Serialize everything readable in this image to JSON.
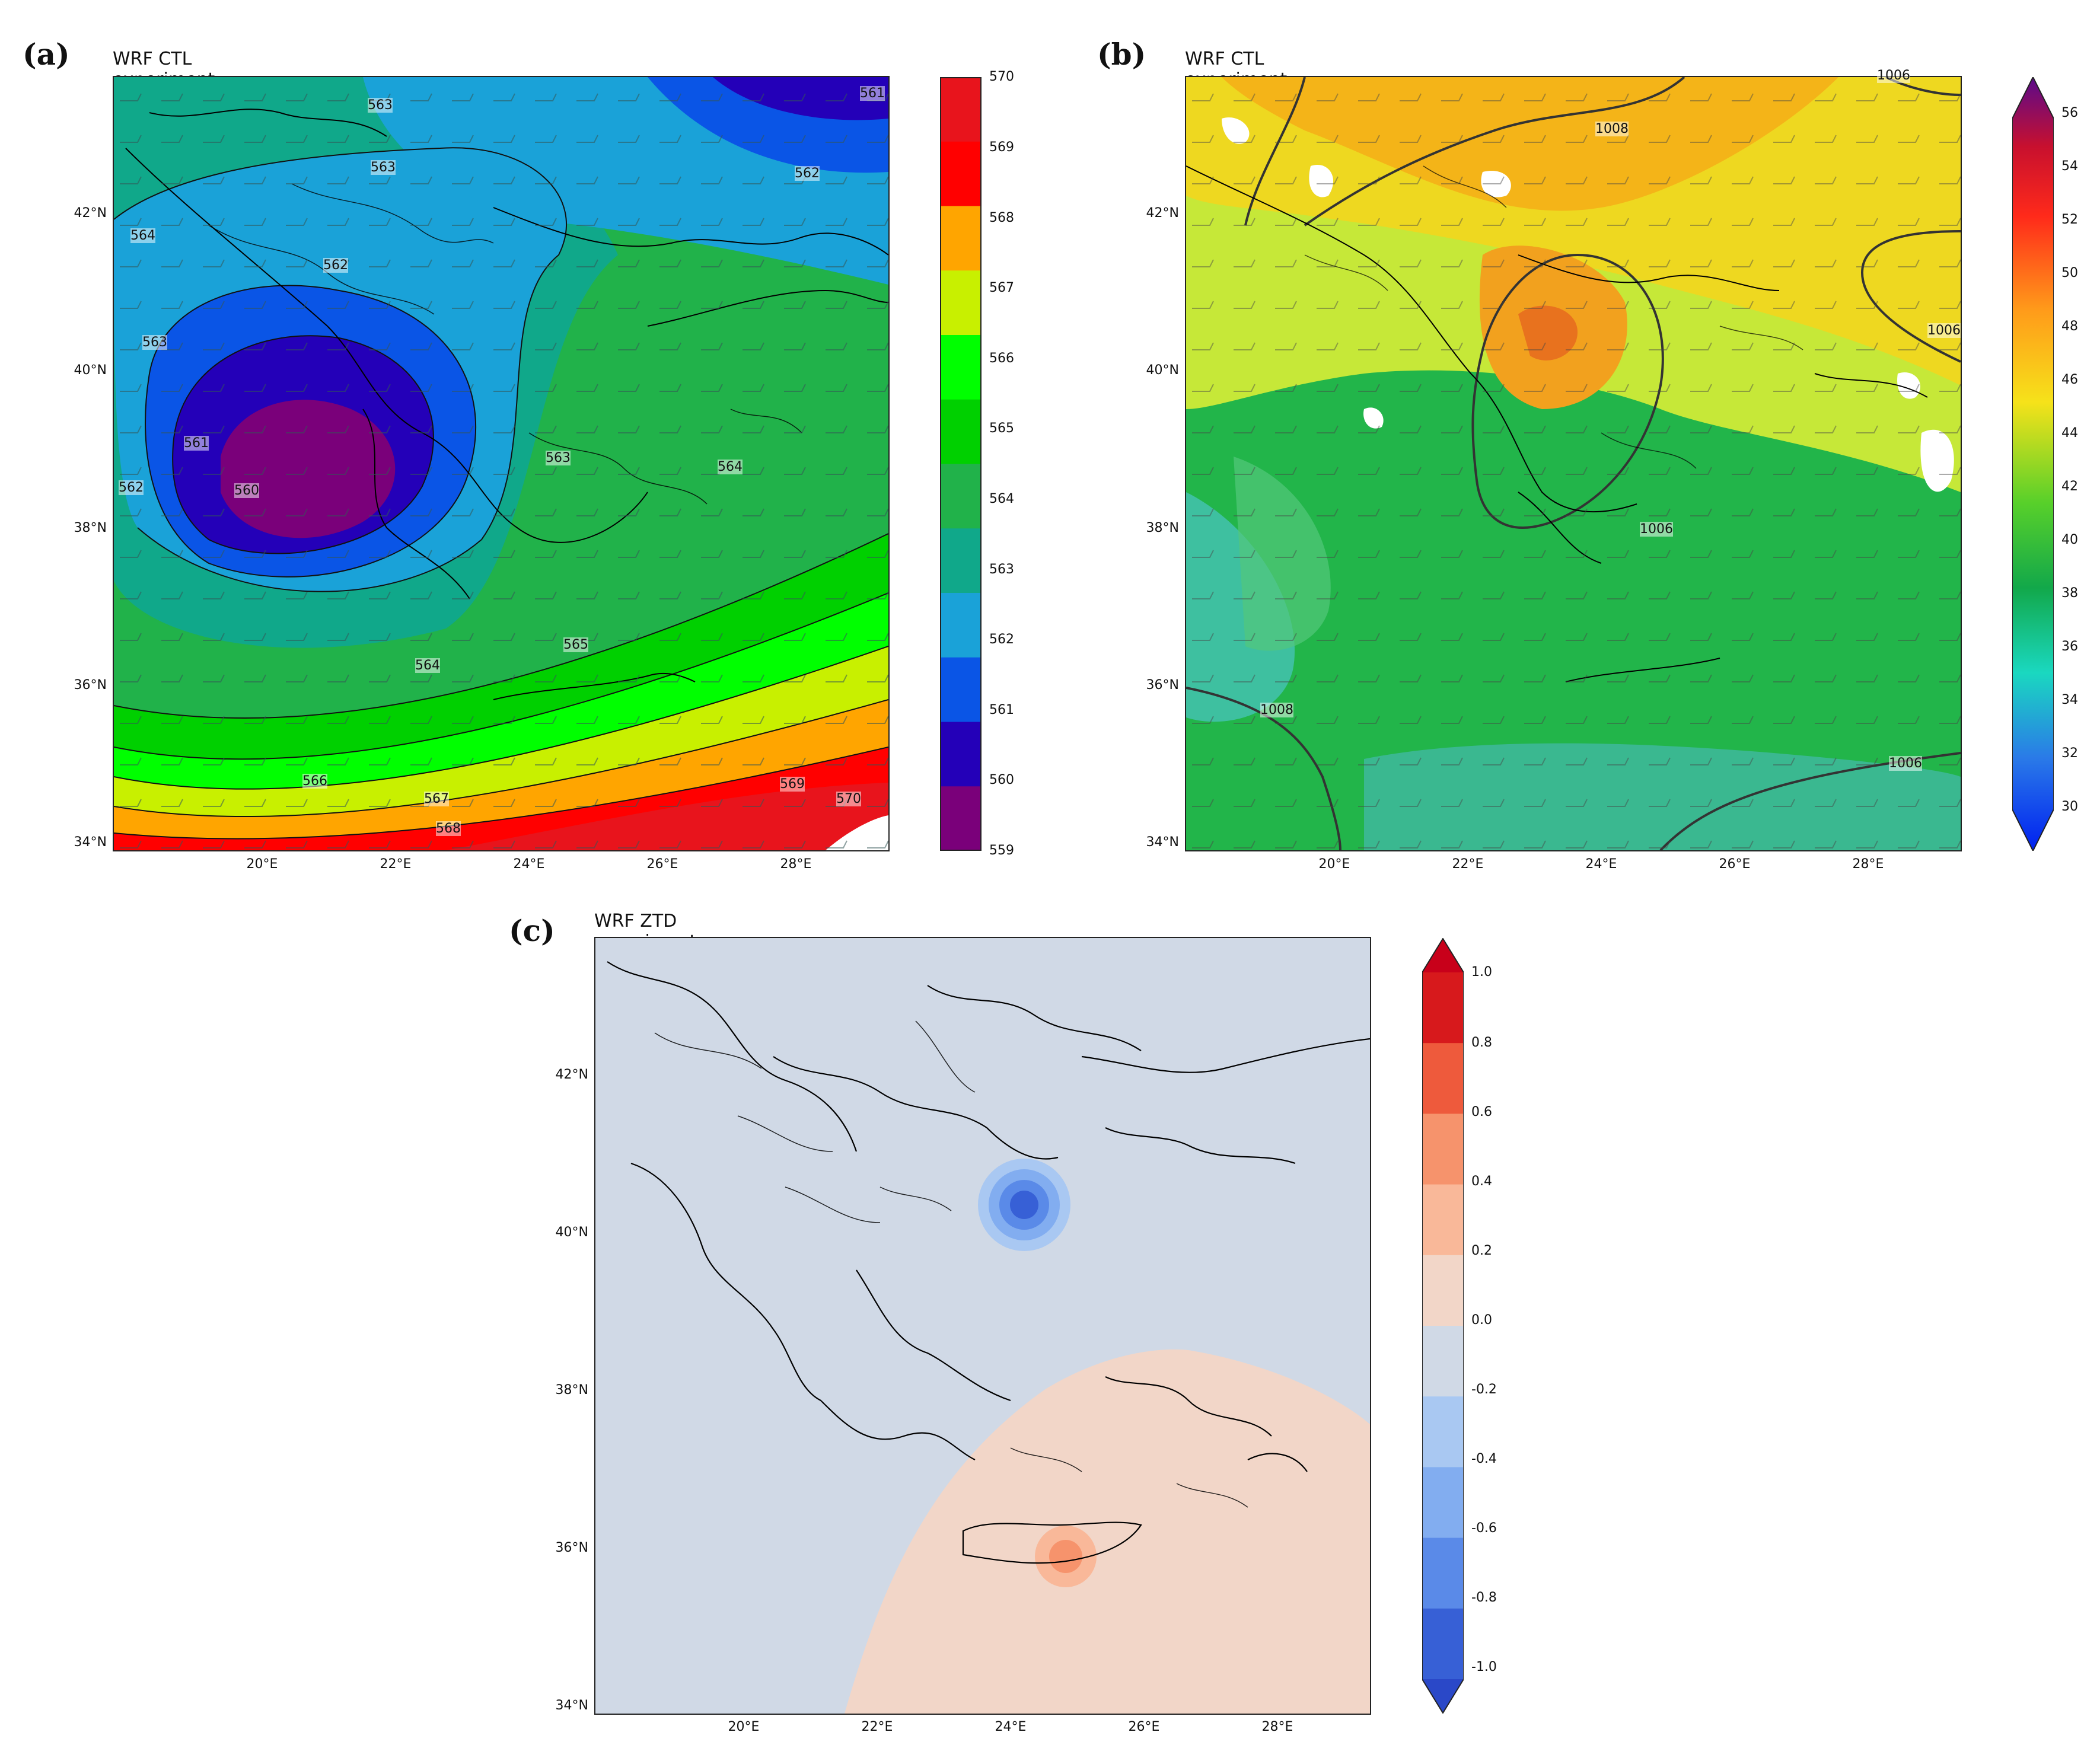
{
  "panels": {
    "a": {
      "label": "(a)",
      "title": "WRF CTL experiment",
      "lat_ticks": [
        "42°N",
        "40°N",
        "38°N",
        "36°N",
        "34°N"
      ],
      "lon_ticks": [
        "20°E",
        "22°E",
        "24°E",
        "26°E",
        "28°E"
      ],
      "colorbar": {
        "ticks": [
          "570",
          "569",
          "568",
          "567",
          "566",
          "565",
          "564",
          "563",
          "562",
          "561",
          "560",
          "559"
        ],
        "colors": [
          "#e8141c",
          "#ff0000",
          "#ffa500",
          "#c8f000",
          "#00ff00",
          "#00d000",
          "#21b24a",
          "#10a88a",
          "#1aa2d8",
          "#0a55e6",
          "#2400b8",
          "#7a007a"
        ]
      },
      "contour_labels": [
        "563",
        "563",
        "564",
        "562",
        "563",
        "561",
        "562",
        "562",
        "561",
        "560",
        "563",
        "564",
        "565",
        "564",
        "566",
        "567",
        "568",
        "569",
        "570"
      ]
    },
    "b": {
      "label": "(b)",
      "title": "WRF CTL experiment",
      "lat_ticks": [
        "42°N",
        "40°N",
        "38°N",
        "36°N",
        "34°N"
      ],
      "lon_ticks": [
        "20°E",
        "22°E",
        "24°E",
        "26°E",
        "28°E"
      ],
      "colorbar": {
        "ticks": [
          "56",
          "54",
          "52",
          "50",
          "48",
          "46",
          "44",
          "42",
          "40",
          "38",
          "36",
          "34",
          "32",
          "30"
        ]
      },
      "contour_labels": [
        "1008",
        "1006",
        "1006",
        "1006",
        "1008",
        "1006"
      ]
    },
    "c": {
      "label": "(c)",
      "title": "WRF ZTD experiment minus CTL experiment",
      "lat_ticks": [
        "42°N",
        "40°N",
        "38°N",
        "36°N",
        "34°N"
      ],
      "lon_ticks": [
        "20°E",
        "22°E",
        "24°E",
        "26°E",
        "28°E"
      ],
      "colorbar": {
        "ticks": [
          "1.0",
          "0.8",
          "0.6",
          "0.4",
          "0.2",
          "0.0",
          "-0.2",
          "-0.4",
          "-0.6",
          "-0.8",
          "-1.0"
        ],
        "colors": [
          "#d7191c",
          "#ee5a3c",
          "#f6936c",
          "#f9b899",
          "#f2d6c8",
          "#d0d9e6",
          "#a9c8f2",
          "#82adf0",
          "#5a8ae8",
          "#3760d6"
        ]
      }
    }
  }
}
